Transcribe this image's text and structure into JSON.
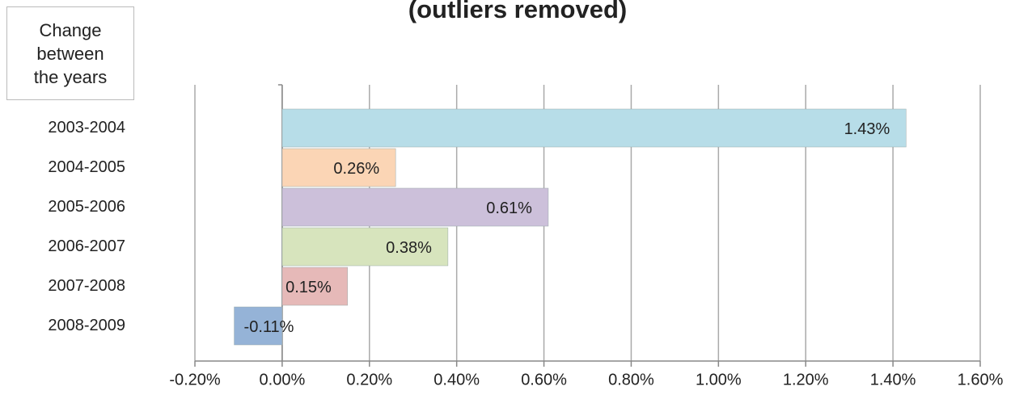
{
  "chart_data": {
    "type": "hbar",
    "title": "(outliers removed)",
    "y_label": "Change between the years",
    "categories": [
      "2003-2004",
      "2004-2005",
      "2005-2006",
      "2006-2007",
      "2007-2008",
      "2008-2009"
    ],
    "values": [
      1.43,
      0.26,
      0.61,
      0.38,
      0.15,
      -0.11
    ],
    "value_labels": [
      "1.43%",
      "0.26%",
      "0.61%",
      "0.38%",
      "0.15%",
      "-0.11%"
    ],
    "colors": [
      "#b7dde8",
      "#fbd5b5",
      "#ccc0da",
      "#d7e4bd",
      "#e6b9b8",
      "#95b3d7"
    ],
    "xlim": [
      -0.2,
      1.6
    ],
    "xticks": [
      {
        "value": -0.2,
        "label": "-0.20%"
      },
      {
        "value": 0,
        "label": "0.00%"
      },
      {
        "value": 0.2,
        "label": "0.20%"
      },
      {
        "value": 0.4,
        "label": "0.40%"
      },
      {
        "value": 0.6,
        "label": "0.60%"
      },
      {
        "value": 0.8,
        "label": "0.80%"
      },
      {
        "value": 1.0,
        "label": "1.00%"
      },
      {
        "value": 1.2,
        "label": "1.20%"
      },
      {
        "value": 1.4,
        "label": "1.40%"
      },
      {
        "value": 1.6,
        "label": "1.60%"
      }
    ],
    "grid": true
  }
}
